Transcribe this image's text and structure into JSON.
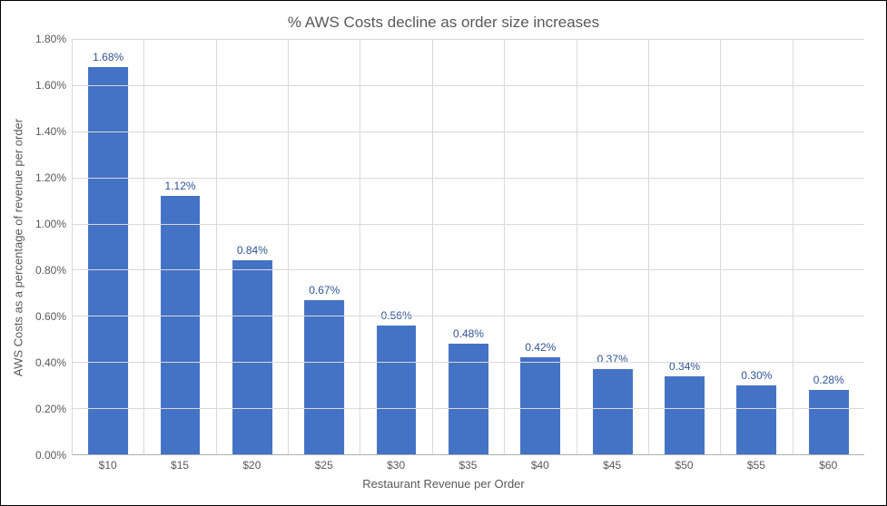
{
  "chart": {
    "type": "bar",
    "title": "% AWS Costs decline as order size increases",
    "title_fontsize": 17,
    "title_color": "#595959",
    "xlabel": "Restaurant Revenue per Order",
    "ylabel": "AWS Costs as a percentage of revenue per order",
    "label_fontsize": 13,
    "tick_fontsize": 12,
    "axis_text_color": "#595959",
    "data_label_color": "#305496",
    "background_color": "#ffffff",
    "border_color": "#000000",
    "grid_color": "#d9d9d9",
    "xaxis_line_color": "#b0b0b0",
    "bar_color": "#4472c4",
    "bar_width_ratio": 0.56,
    "ylim": [
      0.0,
      1.8
    ],
    "ytick_step": 0.2,
    "yticks": [
      "0.00%",
      "0.20%",
      "0.40%",
      "0.60%",
      "0.80%",
      "1.00%",
      "1.20%",
      "1.40%",
      "1.60%",
      "1.80%"
    ],
    "categories": [
      "$10",
      "$15",
      "$20",
      "$25",
      "$30",
      "$35",
      "$40",
      "$45",
      "$50",
      "$55",
      "$60"
    ],
    "values": [
      1.68,
      1.12,
      0.84,
      0.67,
      0.56,
      0.48,
      0.42,
      0.37,
      0.34,
      0.3,
      0.28
    ],
    "value_labels": [
      "1.68%",
      "1.12%",
      "0.84%",
      "0.67%",
      "0.56%",
      "0.48%",
      "0.42%",
      "0.37%",
      "0.34%",
      "0.30%",
      "0.28%"
    ]
  }
}
